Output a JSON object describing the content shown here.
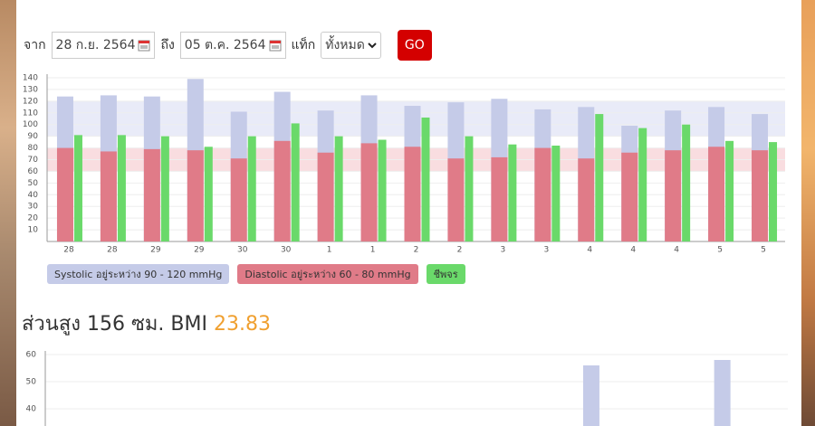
{
  "form": {
    "from_label": "จาก",
    "from_date": "28 ก.ย. 2564",
    "to_label": "ถึง",
    "to_date": "05 ต.ค. 2564",
    "tag_label": "แท็ก",
    "tag_value": "ทั้งหมด",
    "button": "GO"
  },
  "heading": {
    "text": "ส่วนสูง 156 ซม. BMI",
    "bmi": 23.83
  },
  "chart_data": [
    {
      "type": "bar",
      "overlap": true,
      "categories": [
        "28",
        "28",
        "29",
        "29",
        "30",
        "30",
        "1",
        "1",
        "2",
        "2",
        "3",
        "3",
        "4",
        "4",
        "4",
        "5",
        "5"
      ],
      "series": [
        {
          "name": "Systolic อยู่ระหว่าง 90 - 120 mmHg",
          "color": "#c5cbe8",
          "values": [
            124,
            125,
            124,
            139,
            111,
            128,
            112,
            125,
            116,
            119,
            122,
            113,
            115,
            99,
            112,
            115,
            109
          ]
        },
        {
          "name": "Diastolic อยู่ระหว่าง 60 - 80 mmHg",
          "color": "#e07b88",
          "values": [
            80,
            77,
            79,
            78,
            71,
            86,
            76,
            84,
            81,
            71,
            72,
            80,
            71,
            76,
            78,
            81,
            78
          ]
        },
        {
          "name": "ชีพจร",
          "color": "#6ad96a",
          "values": [
            91,
            91,
            90,
            81,
            90,
            101,
            90,
            87,
            106,
            90,
            83,
            82,
            109,
            97,
            100,
            86,
            85
          ]
        }
      ],
      "bands": [
        {
          "from": 90,
          "to": 120,
          "color": "#e9ebf8"
        },
        {
          "from": 60,
          "to": 80,
          "color": "#f9dde0"
        }
      ],
      "ylim": [
        0,
        140
      ],
      "yticks": [
        10,
        20,
        30,
        40,
        50,
        60,
        70,
        80,
        90,
        100,
        110,
        120,
        130,
        140
      ],
      "grid": true
    },
    {
      "type": "bar",
      "categories": [
        null,
        null,
        null,
        null,
        null,
        null,
        null,
        null,
        null,
        null,
        null,
        null,
        null,
        null,
        null,
        null,
        null
      ],
      "values": [
        null,
        null,
        null,
        null,
        null,
        null,
        null,
        null,
        null,
        null,
        null,
        null,
        56,
        null,
        null,
        58,
        null
      ],
      "color": "#c5cbe8",
      "ylim": [
        30,
        60
      ],
      "yticks": [
        40,
        50,
        60
      ],
      "grid": true
    }
  ]
}
